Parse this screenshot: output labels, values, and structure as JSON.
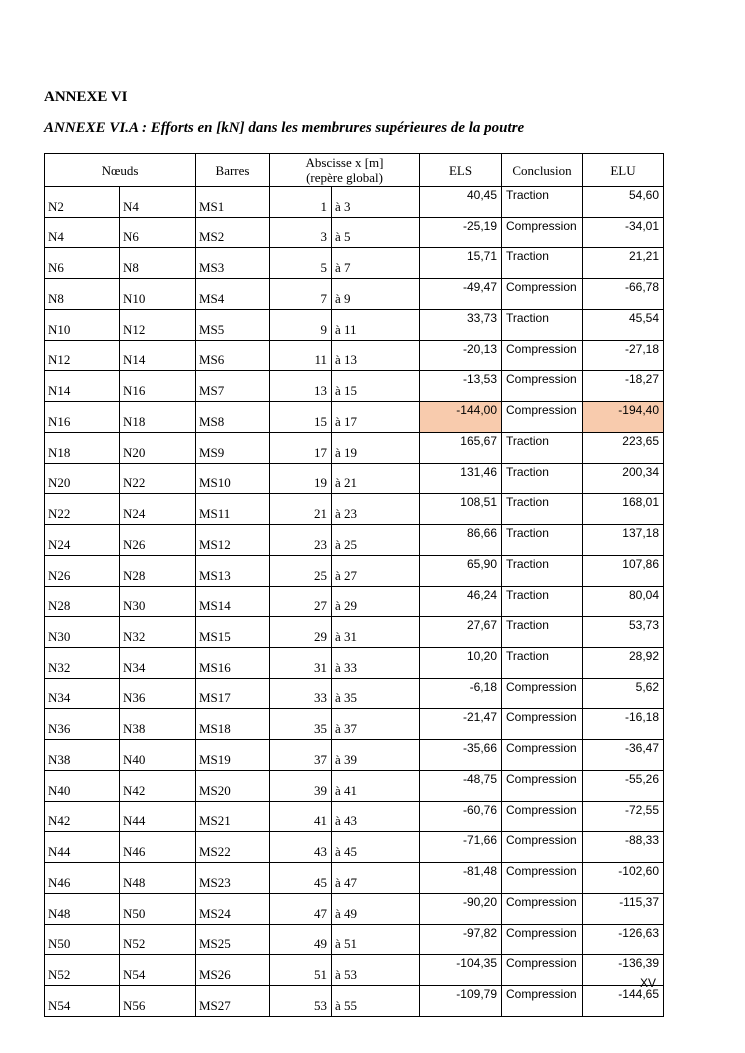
{
  "heading": "ANNEXE VI",
  "subheading": "ANNEXE VI.A : Efforts en [kN] dans les membrures supérieures de la poutre",
  "table": {
    "headers": {
      "noeuds": "Nœuds",
      "barres": "Barres",
      "abscisse_line1": "Abscisse x [m]",
      "abscisse_line2": "(repère global)",
      "els": "ELS",
      "conclusion": "Conclusion",
      "elu": "ELU"
    },
    "highlight_color": "#f8cbad",
    "rows": [
      {
        "n1": "N2",
        "n2": "N4",
        "bar": "MS1",
        "x0": "1",
        "x1": "à 3",
        "els": "40,45",
        "concl": "Traction",
        "elu": "54,60",
        "highlighted": false
      },
      {
        "n1": "N4",
        "n2": "N6",
        "bar": "MS2",
        "x0": "3",
        "x1": "à 5",
        "els": "-25,19",
        "concl": "Compression",
        "elu": "-34,01",
        "highlighted": false
      },
      {
        "n1": "N6",
        "n2": "N8",
        "bar": "MS3",
        "x0": "5",
        "x1": "à 7",
        "els": "15,71",
        "concl": "Traction",
        "elu": "21,21",
        "highlighted": false
      },
      {
        "n1": "N8",
        "n2": "N10",
        "bar": "MS4",
        "x0": "7",
        "x1": "à 9",
        "els": "-49,47",
        "concl": "Compression",
        "elu": "-66,78",
        "highlighted": false
      },
      {
        "n1": "N10",
        "n2": "N12",
        "bar": "MS5",
        "x0": "9",
        "x1": "à 11",
        "els": "33,73",
        "concl": "Traction",
        "elu": "45,54",
        "highlighted": false
      },
      {
        "n1": "N12",
        "n2": "N14",
        "bar": "MS6",
        "x0": "11",
        "x1": "à 13",
        "els": "-20,13",
        "concl": "Compression",
        "elu": "-27,18",
        "highlighted": false
      },
      {
        "n1": "N14",
        "n2": "N16",
        "bar": "MS7",
        "x0": "13",
        "x1": "à 15",
        "els": "-13,53",
        "concl": "Compression",
        "elu": "-18,27",
        "highlighted": false
      },
      {
        "n1": "N16",
        "n2": "N18",
        "bar": "MS8",
        "x0": "15",
        "x1": "à 17",
        "els": "-144,00",
        "concl": "Compression",
        "elu": "-194,40",
        "highlighted": true
      },
      {
        "n1": "N18",
        "n2": "N20",
        "bar": "MS9",
        "x0": "17",
        "x1": "à 19",
        "els": "165,67",
        "concl": "Traction",
        "elu": "223,65",
        "highlighted": false
      },
      {
        "n1": "N20",
        "n2": "N22",
        "bar": "MS10",
        "x0": "19",
        "x1": "à 21",
        "els": "131,46",
        "concl": "Traction",
        "elu": "200,34",
        "highlighted": false
      },
      {
        "n1": "N22",
        "n2": "N24",
        "bar": "MS11",
        "x0": "21",
        "x1": "à 23",
        "els": "108,51",
        "concl": "Traction",
        "elu": "168,01",
        "highlighted": false
      },
      {
        "n1": "N24",
        "n2": "N26",
        "bar": "MS12",
        "x0": "23",
        "x1": "à 25",
        "els": "86,66",
        "concl": "Traction",
        "elu": "137,18",
        "highlighted": false
      },
      {
        "n1": "N26",
        "n2": "N28",
        "bar": "MS13",
        "x0": "25",
        "x1": "à 27",
        "els": "65,90",
        "concl": "Traction",
        "elu": "107,86",
        "highlighted": false
      },
      {
        "n1": "N28",
        "n2": "N30",
        "bar": "MS14",
        "x0": "27",
        "x1": "à 29",
        "els": "46,24",
        "concl": "Traction",
        "elu": "80,04",
        "highlighted": false
      },
      {
        "n1": "N30",
        "n2": "N32",
        "bar": "MS15",
        "x0": "29",
        "x1": "à 31",
        "els": "27,67",
        "concl": "Traction",
        "elu": "53,73",
        "highlighted": false
      },
      {
        "n1": "N32",
        "n2": "N34",
        "bar": "MS16",
        "x0": "31",
        "x1": "à 33",
        "els": "10,20",
        "concl": "Traction",
        "elu": "28,92",
        "highlighted": false
      },
      {
        "n1": "N34",
        "n2": "N36",
        "bar": "MS17",
        "x0": "33",
        "x1": "à 35",
        "els": "-6,18",
        "concl": "Compression",
        "elu": "5,62",
        "highlighted": false
      },
      {
        "n1": "N36",
        "n2": "N38",
        "bar": "MS18",
        "x0": "35",
        "x1": "à 37",
        "els": "-21,47",
        "concl": "Compression",
        "elu": "-16,18",
        "highlighted": false
      },
      {
        "n1": "N38",
        "n2": "N40",
        "bar": "MS19",
        "x0": "37",
        "x1": "à 39",
        "els": "-35,66",
        "concl": "Compression",
        "elu": "-36,47",
        "highlighted": false
      },
      {
        "n1": "N40",
        "n2": "N42",
        "bar": "MS20",
        "x0": "39",
        "x1": "à 41",
        "els": "-48,75",
        "concl": "Compression",
        "elu": "-55,26",
        "highlighted": false
      },
      {
        "n1": "N42",
        "n2": "N44",
        "bar": "MS21",
        "x0": "41",
        "x1": "à 43",
        "els": "-60,76",
        "concl": "Compression",
        "elu": "-72,55",
        "highlighted": false
      },
      {
        "n1": "N44",
        "n2": "N46",
        "bar": "MS22",
        "x0": "43",
        "x1": "à 45",
        "els": "-71,66",
        "concl": "Compression",
        "elu": "-88,33",
        "highlighted": false
      },
      {
        "n1": "N46",
        "n2": "N48",
        "bar": "MS23",
        "x0": "45",
        "x1": "à 47",
        "els": "-81,48",
        "concl": "Compression",
        "elu": "-102,60",
        "highlighted": false
      },
      {
        "n1": "N48",
        "n2": "N50",
        "bar": "MS24",
        "x0": "47",
        "x1": "à 49",
        "els": "-90,20",
        "concl": "Compression",
        "elu": "-115,37",
        "highlighted": false
      },
      {
        "n1": "N50",
        "n2": "N52",
        "bar": "MS25",
        "x0": "49",
        "x1": "à 51",
        "els": "-97,82",
        "concl": "Compression",
        "elu": "-126,63",
        "highlighted": false
      },
      {
        "n1": "N52",
        "n2": "N54",
        "bar": "MS26",
        "x0": "51",
        "x1": "à 53",
        "els": "-104,35",
        "concl": "Compression",
        "elu": "-136,39",
        "highlighted": false
      },
      {
        "n1": "N54",
        "n2": "N56",
        "bar": "MS27",
        "x0": "53",
        "x1": "à 55",
        "els": "-109,79",
        "concl": "Compression",
        "elu": "-144,65",
        "highlighted": false
      }
    ]
  },
  "page_number": "XV"
}
